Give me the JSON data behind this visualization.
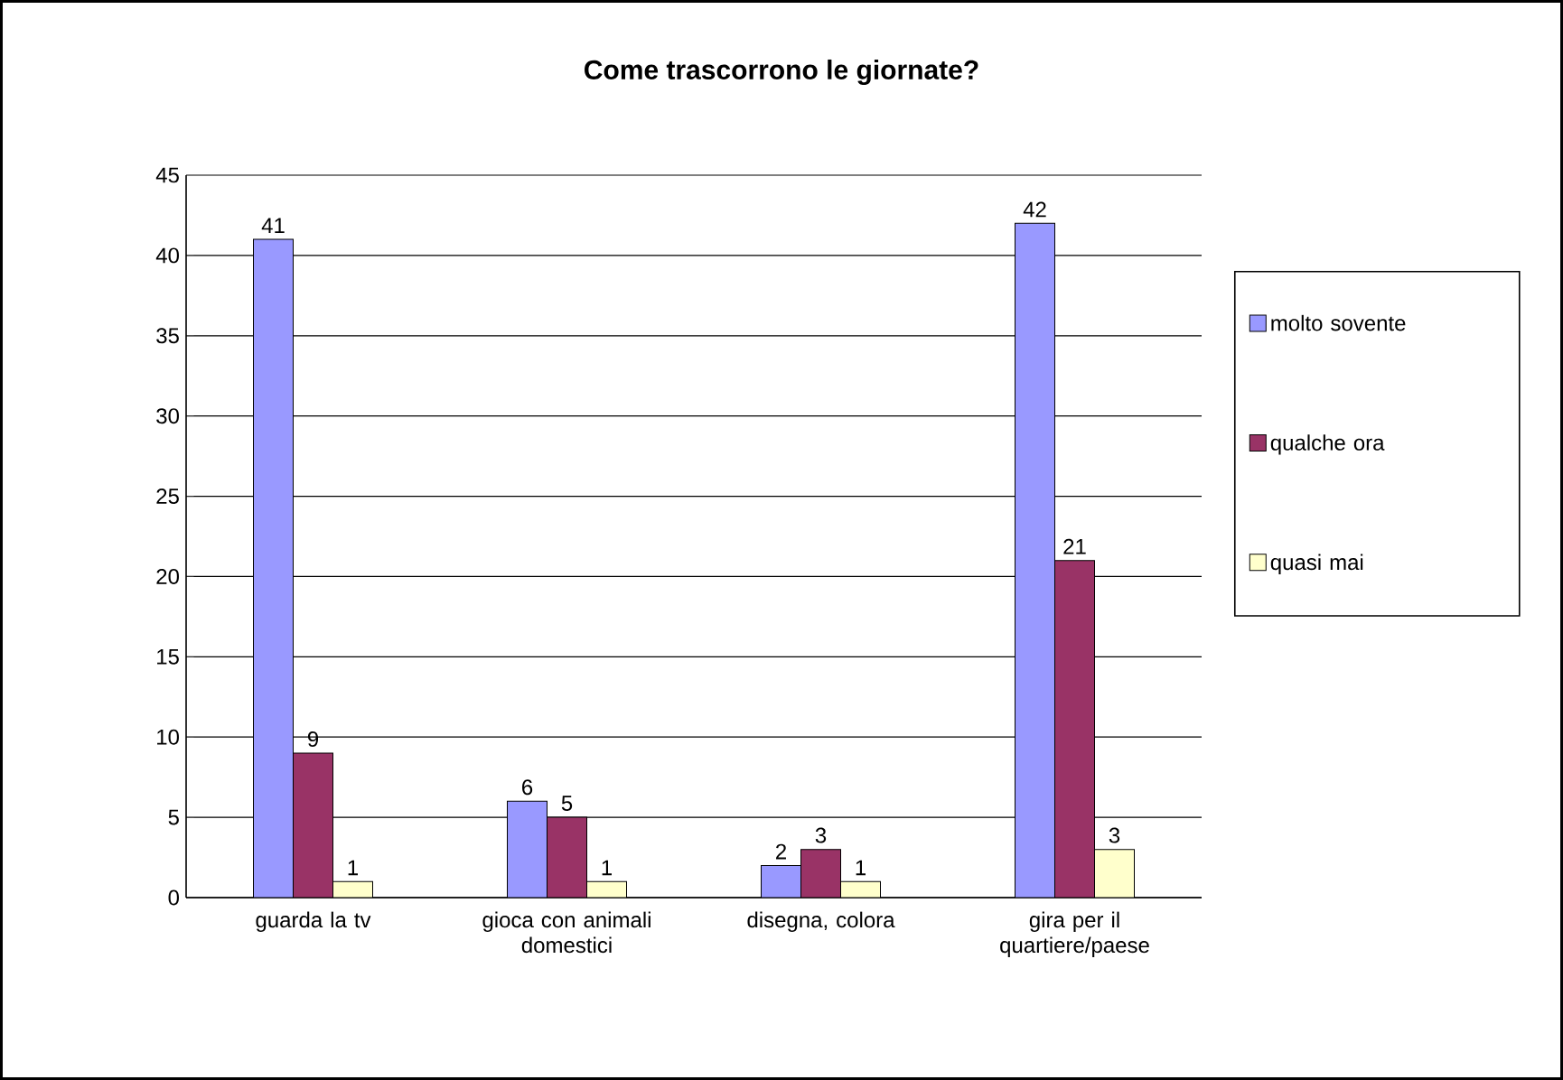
{
  "chart_data": {
    "type": "bar",
    "title": "Come trascorrono le giornate?",
    "categories": [
      "guarda la tv",
      "gioca con animali domestici",
      "disegna, colora",
      "gira per il quartiere/paese"
    ],
    "series": [
      {
        "name": "molto sovente",
        "color": "#9999ff",
        "values": [
          41,
          6,
          2,
          42
        ]
      },
      {
        "name": "qualche ora",
        "color": "#993366",
        "values": [
          9,
          5,
          3,
          21
        ]
      },
      {
        "name": "quasi mai",
        "color": "#ffffcc",
        "values": [
          1,
          1,
          1,
          3
        ]
      }
    ],
    "ylim": [
      0,
      45
    ],
    "yticks": [
      0,
      5,
      10,
      15,
      20,
      25,
      30,
      35,
      40,
      45
    ],
    "grid": "y",
    "legend": "right",
    "data_labels": true
  }
}
